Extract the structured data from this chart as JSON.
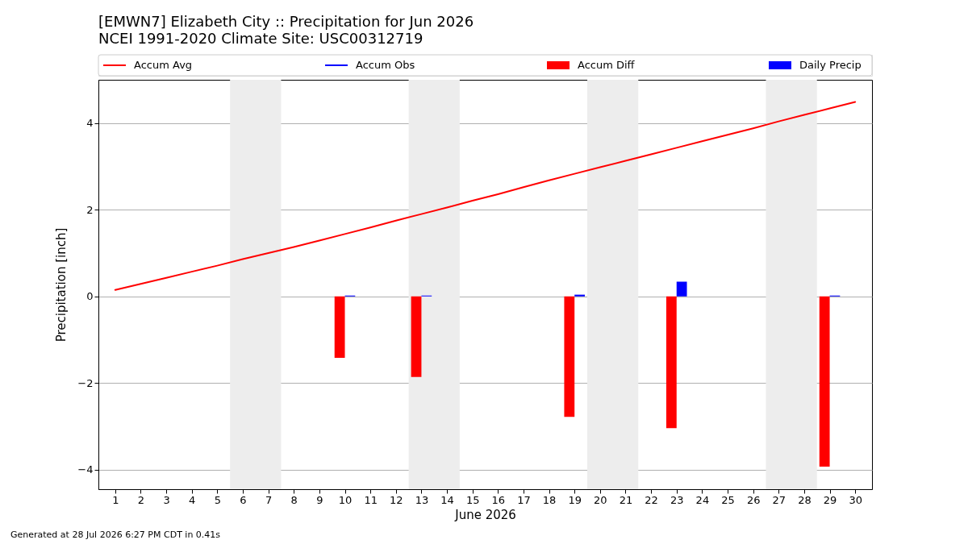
{
  "chart_data": {
    "type": "bar",
    "title": "[EMWN7] Elizabeth City :: Precipitation for Jun 2026",
    "subtitle": "NCEI 1991-2020 Climate Site: USC00312719",
    "xlabel": "June 2026",
    "ylabel": "Precipitation [inch]",
    "annotations": [
      "Generated at 28 Jul 2026 6:27 PM CDT in 0.41s"
    ],
    "xlim": [
      0.5,
      30.5
    ],
    "xticks": [
      1,
      2,
      3,
      4,
      5,
      6,
      7,
      8,
      9,
      10,
      11,
      12,
      13,
      14,
      15,
      16,
      17,
      18,
      19,
      20,
      21,
      22,
      23,
      24,
      25,
      26,
      27,
      28,
      29,
      30
    ],
    "ylim": [
      -4.45,
      5.0
    ],
    "yticks": [
      {
        "value": -4,
        "label": "−4"
      },
      {
        "value": -2,
        "label": "−2"
      },
      0,
      2,
      4
    ],
    "grid": "y",
    "legend": "top",
    "bands": [
      {
        "axis": "x",
        "from": 5.5,
        "to": 7.5,
        "color": "#ededed"
      },
      {
        "axis": "x",
        "from": 12.5,
        "to": 14.5,
        "color": "#ededed"
      },
      {
        "axis": "x",
        "from": 19.5,
        "to": 21.5,
        "color": "#ededed"
      },
      {
        "axis": "x",
        "from": 26.5,
        "to": 28.5,
        "color": "#ededed"
      }
    ],
    "series": [
      {
        "name": "Accum Avg",
        "type": "line",
        "color": "#ff0000",
        "x": [
          1,
          2,
          3,
          4,
          5,
          6,
          7,
          8,
          9,
          10,
          11,
          12,
          13,
          14,
          15,
          16,
          17,
          18,
          19,
          20,
          21,
          22,
          23,
          24,
          25,
          26,
          27,
          28,
          29,
          30
        ],
        "values": [
          0.15,
          0.29,
          0.43,
          0.57,
          0.71,
          0.86,
          1.0,
          1.14,
          1.29,
          1.44,
          1.59,
          1.75,
          1.9,
          2.05,
          2.21,
          2.36,
          2.52,
          2.68,
          2.83,
          2.98,
          3.13,
          3.28,
          3.43,
          3.58,
          3.73,
          3.88,
          4.04,
          4.19,
          4.34,
          4.49
        ]
      },
      {
        "name": "Accum Obs",
        "type": "line",
        "color": "#0000ff"
      },
      {
        "name": "Accum Diff",
        "color": "#ff0000",
        "x": [
          10,
          13,
          19,
          23,
          29
        ],
        "values": [
          -1.42,
          -1.86,
          -2.78,
          -3.04,
          -3.93
        ]
      },
      {
        "name": "Daily Precip",
        "color": "#0000ff",
        "x": [
          10,
          13,
          19,
          23,
          29
        ],
        "values": [
          0.02,
          0.02,
          0.04,
          0.34,
          0.02
        ]
      }
    ]
  }
}
